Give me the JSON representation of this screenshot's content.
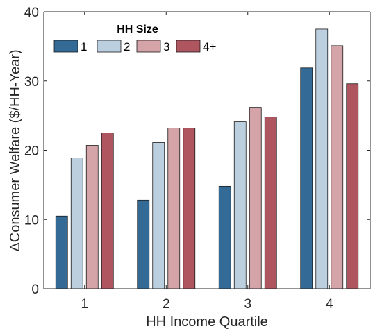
{
  "chart_data": {
    "type": "bar",
    "categories": [
      "1",
      "2",
      "3",
      "4"
    ],
    "xlabel": "HH Income Quartile",
    "ylabel": "ΔConsumer Welfare ($/HH-Year)",
    "ylim": [
      0,
      40
    ],
    "yticks": [
      0,
      10,
      20,
      30,
      40
    ],
    "grid": false,
    "legend": {
      "title": "HH Size",
      "placement": "top-left",
      "orientation": "horizontal"
    },
    "series": [
      {
        "name": "1",
        "color": "#336a96",
        "values": [
          10.5,
          12.8,
          14.8,
          31.9
        ]
      },
      {
        "name": "2",
        "color": "#bccfdf",
        "values": [
          18.9,
          21.1,
          24.1,
          37.5
        ]
      },
      {
        "name": "3",
        "color": "#d4a4a9",
        "values": [
          20.7,
          23.2,
          26.2,
          35.1
        ]
      },
      {
        "name": "4+",
        "color": "#ae5560",
        "values": [
          22.5,
          23.2,
          24.8,
          29.6
        ]
      }
    ]
  }
}
